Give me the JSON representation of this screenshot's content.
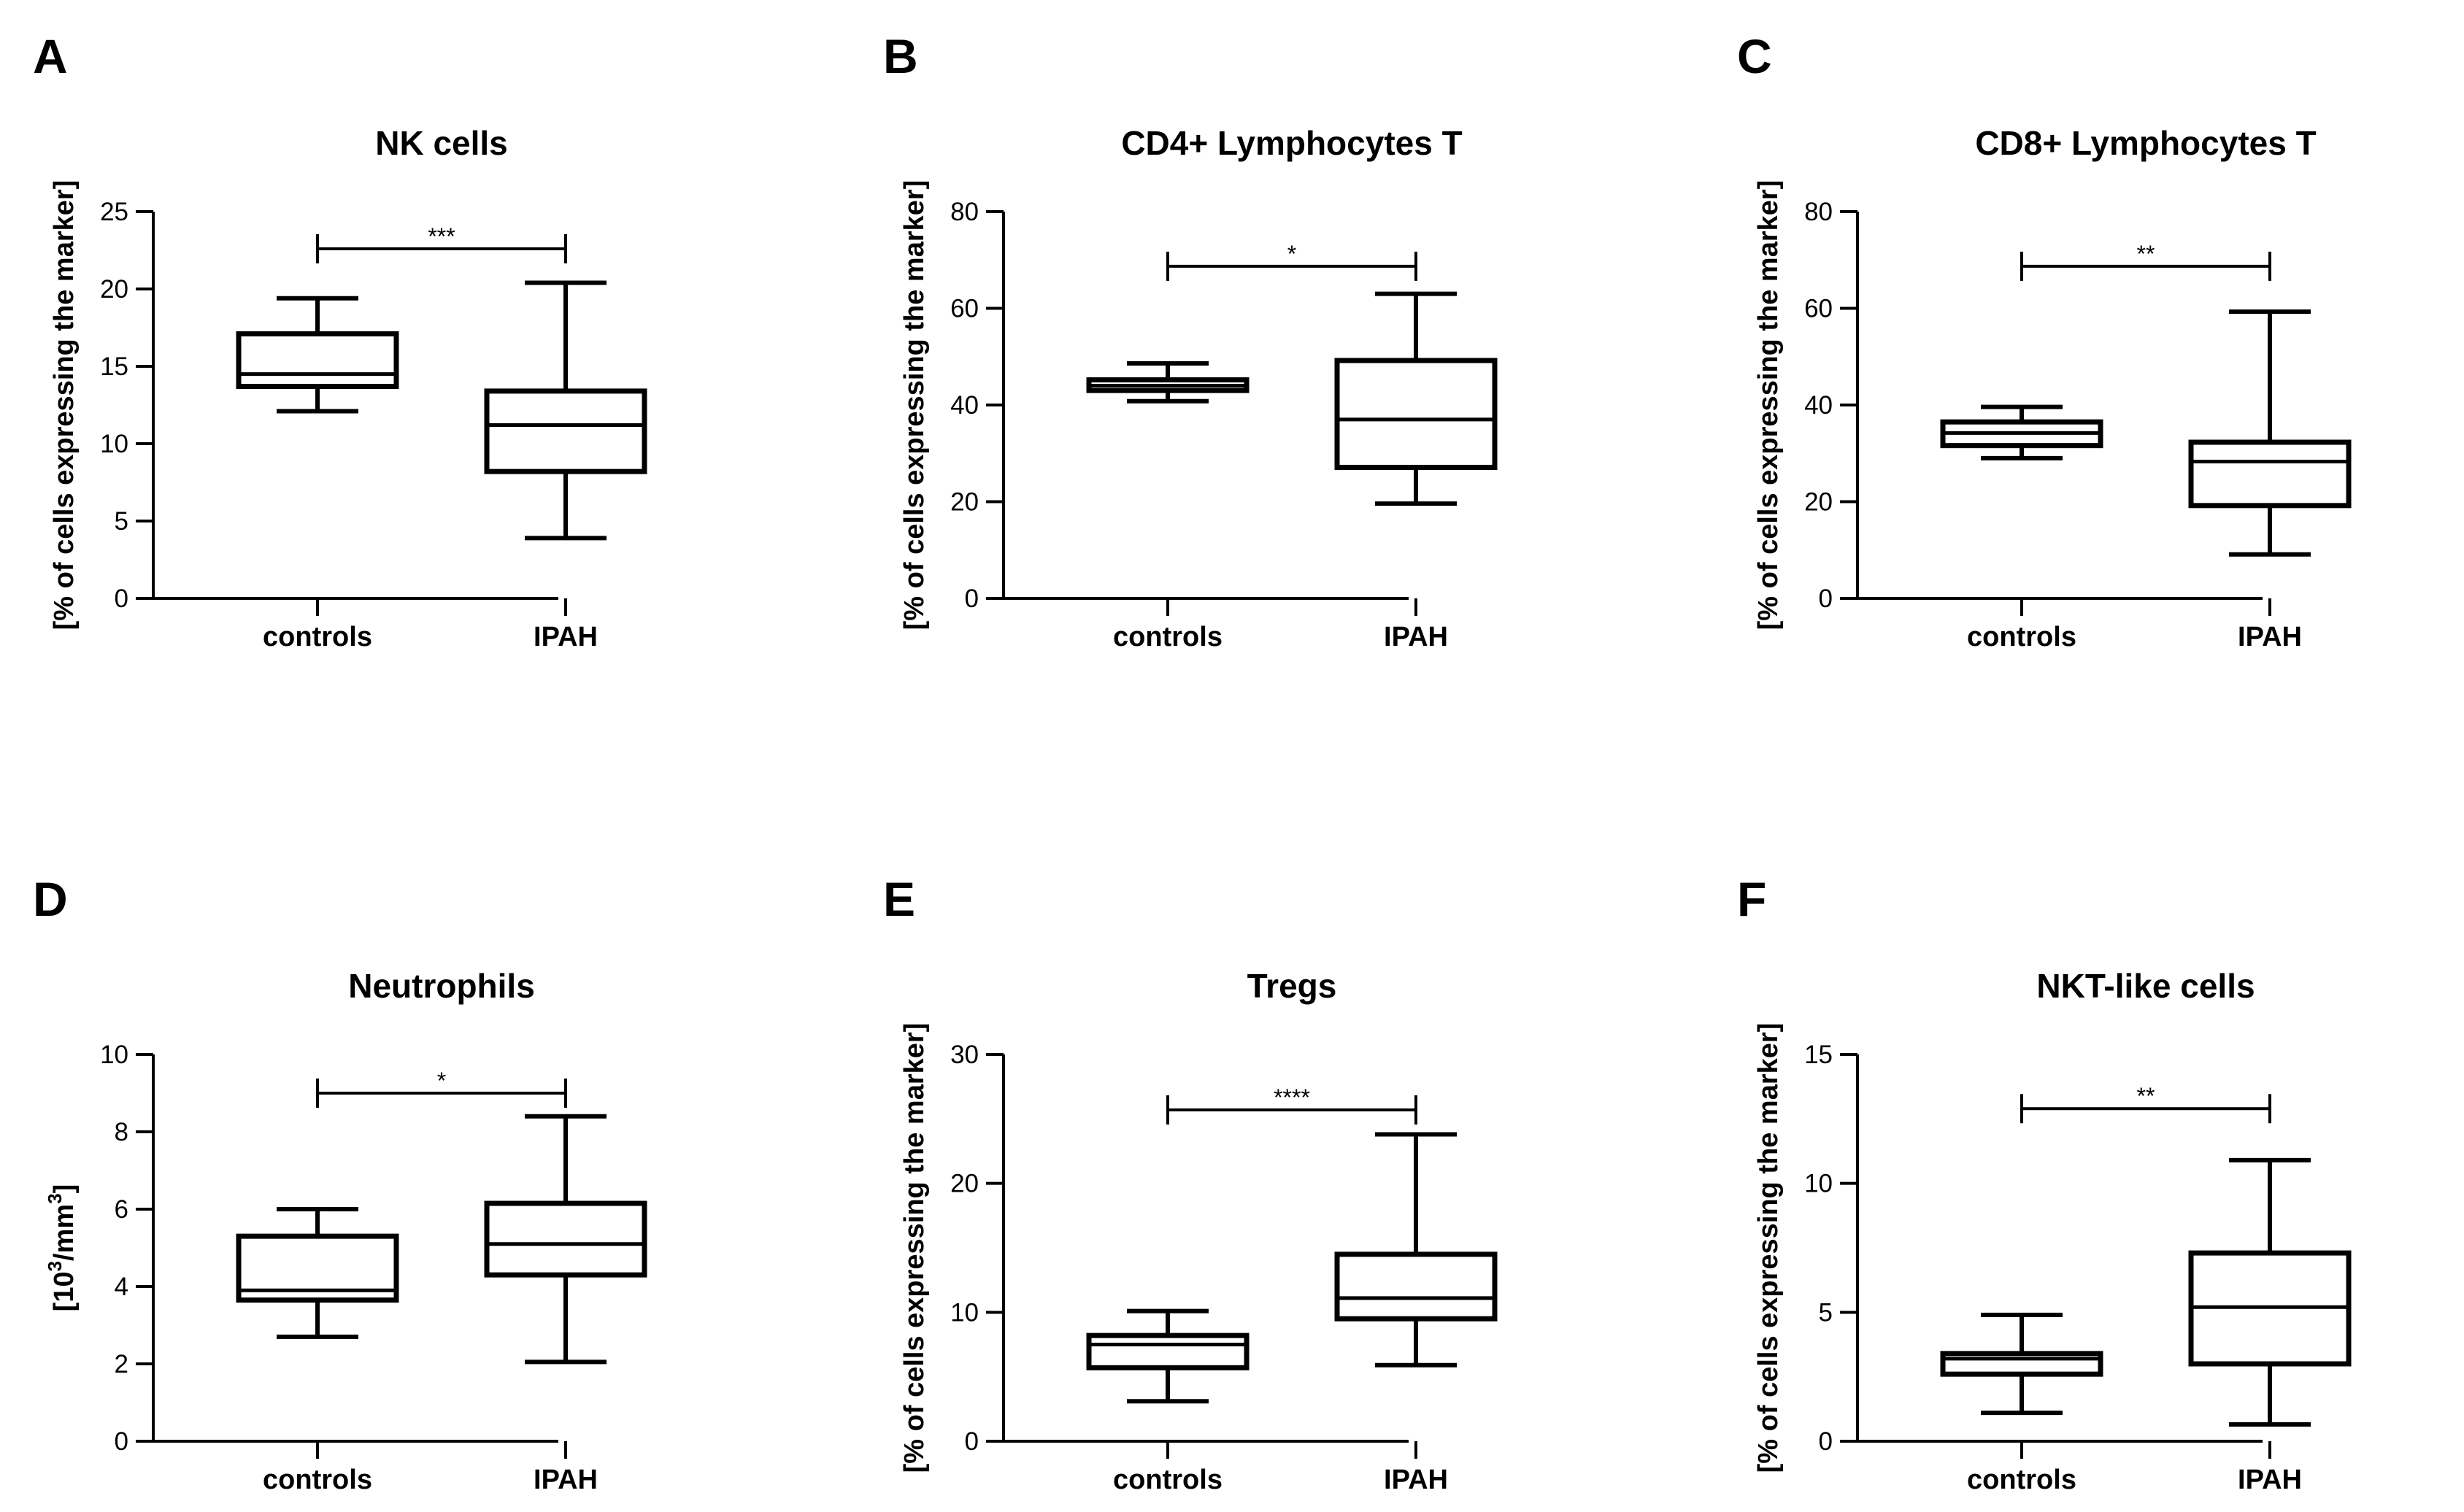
{
  "chart_data": [
    {
      "type": "box",
      "panel": "A",
      "title": "NK cells",
      "ylabel": "[% of cells expressing the marker]",
      "ylim": [
        0,
        25
      ],
      "yticks": [
        0,
        5,
        10,
        15,
        20,
        25
      ],
      "categories": [
        "controls",
        "IPAH"
      ],
      "boxes": [
        {
          "min": 12.1,
          "q1": 13.7,
          "median": 14.5,
          "q3": 17.1,
          "max": 19.4
        },
        {
          "min": 3.9,
          "q1": 8.2,
          "median": 11.2,
          "q3": 13.4,
          "max": 20.4
        }
      ],
      "significance": {
        "label": "***",
        "level": 22.6
      }
    },
    {
      "type": "box",
      "panel": "B",
      "title": "CD4+ Lymphocytes T",
      "ylabel": "[% of cells expressing the marker]",
      "ylim": [
        0,
        80
      ],
      "yticks": [
        0,
        20,
        40,
        60,
        80
      ],
      "categories": [
        "controls",
        "IPAH"
      ],
      "boxes": [
        {
          "min": 40.8,
          "q1": 43.0,
          "median": 44.0,
          "q3": 45.2,
          "max": 48.6
        },
        {
          "min": 19.6,
          "q1": 27.1,
          "median": 37.0,
          "q3": 49.2,
          "max": 63.0
        }
      ],
      "significance": {
        "label": "*",
        "level": 68.7
      }
    },
    {
      "type": "box",
      "panel": "C",
      "title": "CD8+ Lymphocytes T",
      "ylabel": "[% of cells expressing the marker]",
      "ylim": [
        0,
        80
      ],
      "yticks": [
        0,
        20,
        40,
        60,
        80
      ],
      "categories": [
        "controls",
        "IPAH"
      ],
      "boxes": [
        {
          "min": 29.0,
          "q1": 31.6,
          "median": 34.2,
          "q3": 36.5,
          "max": 39.6
        },
        {
          "min": 9.1,
          "q1": 19.2,
          "median": 28.3,
          "q3": 32.3,
          "max": 59.3
        }
      ],
      "significance": {
        "label": "**",
        "level": 68.7
      }
    },
    {
      "type": "box",
      "panel": "D",
      "title": "Neutrophils",
      "ylabel_base": "[10",
      "ylabel_sup": "3",
      "ylabel_rest": "/mm",
      "ylabel_sup2": "3",
      "ylabel_end": "]",
      "ylim": [
        0,
        10
      ],
      "yticks": [
        0,
        2,
        4,
        6,
        8,
        10
      ],
      "categories": [
        "controls",
        "IPAH"
      ],
      "boxes": [
        {
          "min": 2.7,
          "q1": 3.65,
          "median": 3.9,
          "q3": 5.3,
          "max": 6.0
        },
        {
          "min": 2.05,
          "q1": 4.3,
          "median": 5.1,
          "q3": 6.15,
          "max": 8.4
        }
      ],
      "significance": {
        "label": "*",
        "level": 9.0
      }
    },
    {
      "type": "box",
      "panel": "E",
      "title": "Tregs",
      "ylabel": "[% of cells expressing the marker]",
      "ylim": [
        0,
        30
      ],
      "yticks": [
        0,
        10,
        20,
        30
      ],
      "categories": [
        "controls",
        "IPAH"
      ],
      "boxes": [
        {
          "min": 3.1,
          "q1": 5.7,
          "median": 7.5,
          "q3": 8.2,
          "max": 10.1
        },
        {
          "min": 5.9,
          "q1": 9.5,
          "median": 11.1,
          "q3": 14.5,
          "max": 23.8
        }
      ],
      "significance": {
        "label": "****",
        "level": 25.7
      }
    },
    {
      "type": "box",
      "panel": "F",
      "title": "NKT-like cells",
      "ylabel": "[% of cells expressing the marker]",
      "ylim": [
        0,
        15
      ],
      "yticks": [
        0,
        5,
        10,
        15
      ],
      "categories": [
        "controls",
        "IPAH"
      ],
      "boxes": [
        {
          "min": 1.1,
          "q1": 2.6,
          "median": 3.2,
          "q3": 3.4,
          "max": 4.9
        },
        {
          "min": 0.65,
          "q1": 3.0,
          "median": 5.2,
          "q3": 7.3,
          "max": 10.9
        }
      ],
      "significance": {
        "label": "**",
        "level": 12.9
      }
    }
  ]
}
